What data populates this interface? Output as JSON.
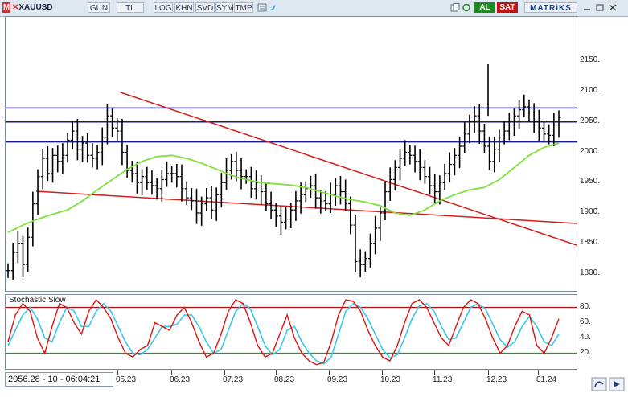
{
  "toolbar": {
    "symbol_prefix": "M",
    "symbol": "XAUUSD",
    "periods": [
      "GUN",
      "TL",
      "LOG",
      "KHN",
      "SVD",
      "SYM",
      "TMP"
    ],
    "buy_label": "AL",
    "sell_label": "SAT",
    "brand": "MATRiKS"
  },
  "price_axis": {
    "labels": [
      "2150.",
      "2100.",
      "2050.",
      "2000.",
      "1950.",
      "1900.",
      "1850.",
      "1800."
    ]
  },
  "stoch_axis": {
    "labels": [
      "80.",
      "60.",
      "40.",
      "20."
    ]
  },
  "indicator": {
    "title": "Stochastic Slow",
    "overbought": 80,
    "oversold": 20
  },
  "time_axis": {
    "labels": [
      "05.23",
      "06.23",
      "07.23",
      "08.23",
      "09.23",
      "10.23",
      "11.23",
      "12.23",
      "01.24"
    ]
  },
  "readout": "2056.28 - 10 - 06:04:21",
  "colors": {
    "price_bars": "#000000",
    "moving_average": "#7ee23a",
    "trendline": "#d41c1c",
    "support_resistance": "#1a1a8c",
    "stoch_k": "#e01010",
    "stoch_d": "#38c8e8",
    "overbought_line": "#b01010",
    "oversold_line": "#18a018"
  },
  "chart_data": {
    "type": "ohlc",
    "ylim": [
      1760,
      2180
    ],
    "horizontal_levels": [
      2073,
      2050,
      2017
    ],
    "close_series": [
      1805,
      1835,
      1850,
      1815,
      1860,
      1915,
      1960,
      1990,
      1965,
      1995,
      1985,
      1995,
      2020,
      2035,
      2005,
      2015,
      1995,
      1990,
      2000,
      2025,
      2060,
      2040,
      2035,
      2000,
      1970,
      1965,
      1950,
      1960,
      1950,
      1945,
      1940,
      1955,
      1965,
      1965,
      1960,
      1940,
      1925,
      1920,
      1900,
      1915,
      1925,
      1905,
      1930,
      1950,
      1970,
      1985,
      1970,
      1960,
      1960,
      1940,
      1950,
      1935,
      1915,
      1905,
      1895,
      1885,
      1890,
      1905,
      1920,
      1930,
      1940,
      1945,
      1925,
      1920,
      1915,
      1930,
      1945,
      1935,
      1915,
      1880,
      1820,
      1815,
      1825,
      1850,
      1875,
      1900,
      1935,
      1955,
      1975,
      1990,
      2000,
      1995,
      1985,
      1975,
      1960,
      1945,
      1935,
      1950,
      1965,
      1980,
      1995,
      2010,
      2030,
      2050,
      2060,
      2035,
      2010,
      1985,
      2005,
      2025,
      2035,
      2045,
      2060,
      2070,
      2075,
      2065,
      2050,
      2040,
      2030,
      2028,
      2045,
      2057
    ],
    "moving_average_series": [
      1868,
      1880,
      1890,
      1898,
      1905,
      1920,
      1938,
      1955,
      1972,
      1985,
      1993,
      1995,
      1990,
      1982,
      1972,
      1962,
      1955,
      1950,
      1948,
      1946,
      1942,
      1935,
      1928,
      1922,
      1918,
      1912,
      1900,
      1896,
      1905,
      1920,
      1930,
      1938,
      1942,
      1955,
      1975,
      1995,
      2008,
      2015
    ],
    "trendlines": [
      {
        "from": [
          "04.23",
          2070
        ],
        "to": [
          "01.24",
          1826
        ]
      },
      {
        "from": [
          "04.23",
          1910
        ],
        "to": [
          "01.24",
          1860
        ]
      }
    ]
  },
  "stoch_data": {
    "k": [
      35,
      70,
      85,
      75,
      40,
      20,
      55,
      85,
      80,
      60,
      45,
      75,
      90,
      80,
      65,
      40,
      20,
      15,
      25,
      30,
      60,
      55,
      50,
      70,
      80,
      60,
      35,
      15,
      20,
      45,
      75,
      90,
      85,
      60,
      30,
      15,
      20,
      45,
      70,
      40,
      20,
      10,
      5,
      8,
      35,
      70,
      90,
      88,
      75,
      50,
      30,
      15,
      10,
      30,
      60,
      85,
      90,
      80,
      60,
      40,
      30,
      55,
      80,
      90,
      85,
      65,
      40,
      20,
      30,
      55,
      75,
      70,
      30,
      20,
      40,
      65
    ],
    "d": [
      30,
      50,
      70,
      80,
      65,
      40,
      35,
      60,
      80,
      75,
      55,
      55,
      75,
      85,
      75,
      55,
      35,
      20,
      18,
      25,
      40,
      55,
      55,
      58,
      70,
      70,
      55,
      35,
      20,
      25,
      50,
      75,
      85,
      78,
      55,
      30,
      18,
      25,
      50,
      55,
      35,
      20,
      10,
      6,
      15,
      45,
      75,
      85,
      80,
      65,
      45,
      25,
      14,
      18,
      40,
      65,
      82,
      85,
      75,
      55,
      38,
      40,
      60,
      80,
      85,
      78,
      58,
      38,
      28,
      35,
      55,
      68,
      55,
      35,
      30,
      45
    ]
  }
}
